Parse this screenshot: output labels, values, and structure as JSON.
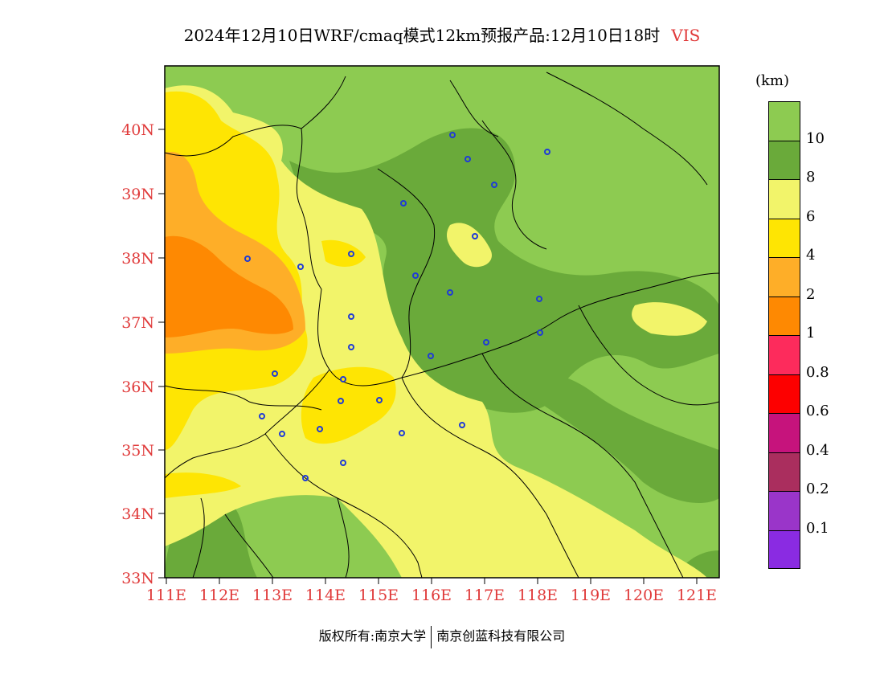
{
  "title": {
    "main": "2024年12月10日WRF/cmaq模式12km预报产品:12月10日18时",
    "variable": "VIS"
  },
  "colors": {
    "title_variable": "#e03a3a",
    "axis_labels": "#e03a3a",
    "station_marker": "#1f3bd6"
  },
  "map": {
    "lat_labels": [
      "40N",
      "39N",
      "38N",
      "37N",
      "36N",
      "35N",
      "34N",
      "33N"
    ],
    "lon_labels": [
      "111E",
      "112E",
      "113E",
      "114E",
      "115E",
      "116E",
      "117E",
      "118E",
      "119E",
      "120E",
      "121E"
    ],
    "extent": {
      "lon": [
        111,
        121.4
      ],
      "lat": [
        33,
        41
      ]
    },
    "field": "visibility (km)"
  },
  "legend": {
    "unit": "(km)",
    "labels": [
      "10",
      "8",
      "6",
      "4",
      "2",
      "1",
      "0.8",
      "0.6",
      "0.4",
      "0.2",
      "0.1"
    ],
    "colors": [
      "#8dcb51",
      "#6aaa3a",
      "#f2f46a",
      "#fee503",
      "#feae28",
      "#fe8902",
      "#fd2b5c",
      "#fd0000",
      "#c6137c",
      "#aa2e5e",
      "#9a35c9",
      "#8a2be2"
    ]
  },
  "footer": {
    "left": "版权所有:南京大学",
    "right": "南京创蓝科技有限公司"
  }
}
